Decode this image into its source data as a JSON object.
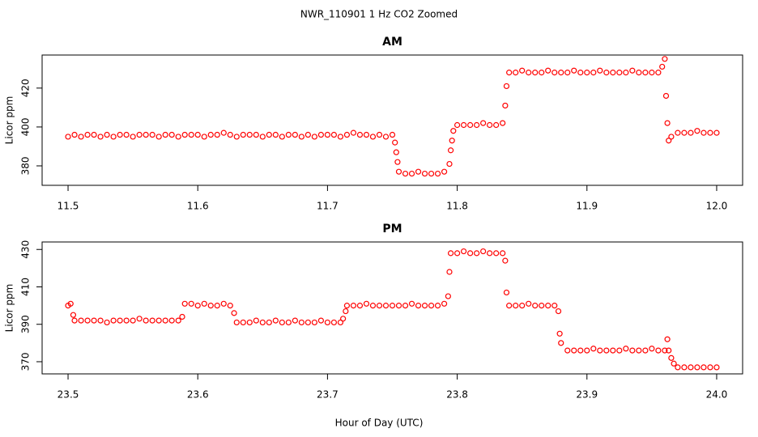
{
  "title": "NWR_110901  1 Hz CO2 Zoomed",
  "xlabel": "Hour of Day (UTC)",
  "chart_data": [
    {
      "type": "scatter",
      "title": "AM",
      "ylabel": "Licor ppm",
      "color": "#ff0000",
      "xlim": [
        11.48,
        12.02
      ],
      "ylim": [
        370,
        437
      ],
      "xticks": [
        {
          "value": 11.5,
          "label": "11.5"
        },
        {
          "value": 11.6,
          "label": "11.6"
        },
        {
          "value": 11.7,
          "label": "11.7"
        },
        {
          "value": 11.8,
          "label": "11.8"
        },
        {
          "value": 11.9,
          "label": "11.9"
        },
        {
          "value": 12.0,
          "label": "12.0"
        }
      ],
      "yticks": [
        380,
        400,
        420
      ],
      "x": [
        11.5,
        11.505,
        11.51,
        11.515,
        11.52,
        11.525,
        11.53,
        11.535,
        11.54,
        11.545,
        11.55,
        11.555,
        11.56,
        11.565,
        11.57,
        11.575,
        11.58,
        11.585,
        11.59,
        11.595,
        11.6,
        11.605,
        11.61,
        11.615,
        11.62,
        11.625,
        11.63,
        11.635,
        11.64,
        11.645,
        11.65,
        11.655,
        11.66,
        11.665,
        11.67,
        11.675,
        11.68,
        11.685,
        11.69,
        11.695,
        11.7,
        11.705,
        11.71,
        11.715,
        11.72,
        11.725,
        11.73,
        11.735,
        11.74,
        11.745,
        11.75,
        11.752,
        11.753,
        11.754,
        11.755,
        11.76,
        11.765,
        11.77,
        11.775,
        11.78,
        11.785,
        11.79,
        11.794,
        11.795,
        11.796,
        11.797,
        11.8,
        11.805,
        11.81,
        11.815,
        11.82,
        11.825,
        11.83,
        11.835,
        11.837,
        11.838,
        11.84,
        11.845,
        11.85,
        11.855,
        11.86,
        11.865,
        11.87,
        11.875,
        11.88,
        11.885,
        11.89,
        11.895,
        11.9,
        11.905,
        11.91,
        11.915,
        11.92,
        11.925,
        11.93,
        11.935,
        11.94,
        11.945,
        11.95,
        11.955,
        11.958,
        11.96,
        11.961,
        11.962,
        11.963,
        11.965,
        11.97,
        11.975,
        11.98,
        11.985,
        11.99,
        11.995,
        12.0
      ],
      "values": [
        395,
        396,
        395,
        396,
        396,
        395,
        396,
        395,
        396,
        396,
        395,
        396,
        396,
        396,
        395,
        396,
        396,
        395,
        396,
        396,
        396,
        395,
        396,
        396,
        397,
        396,
        395,
        396,
        396,
        396,
        395,
        396,
        396,
        395,
        396,
        396,
        395,
        396,
        395,
        396,
        396,
        396,
        395,
        396,
        397,
        396,
        396,
        395,
        396,
        395,
        396,
        392,
        387,
        382,
        377,
        376,
        376,
        377,
        376,
        376,
        376,
        377,
        381,
        388,
        393,
        398,
        401,
        401,
        401,
        401,
        402,
        401,
        401,
        402,
        411,
        421,
        428,
        428,
        429,
        428,
        428,
        428,
        429,
        428,
        428,
        428,
        429,
        428,
        428,
        428,
        429,
        428,
        428,
        428,
        428,
        429,
        428,
        428,
        428,
        428,
        431,
        435,
        416,
        402,
        393,
        395,
        397,
        397,
        397,
        398,
        397,
        397,
        397
      ]
    },
    {
      "type": "scatter",
      "title": "PM",
      "ylabel": "Licor ppm",
      "color": "#ff0000",
      "xlim": [
        23.48,
        24.02
      ],
      "ylim": [
        363.5,
        434
      ],
      "xticks": [
        {
          "value": 23.5,
          "label": "23.5"
        },
        {
          "value": 23.6,
          "label": "23.6"
        },
        {
          "value": 23.7,
          "label": "23.7"
        },
        {
          "value": 23.8,
          "label": "23.8"
        },
        {
          "value": 23.9,
          "label": "23.9"
        },
        {
          "value": 24.0,
          "label": "24.0"
        }
      ],
      "yticks": [
        370,
        390,
        410,
        430
      ],
      "x": [
        23.5,
        23.502,
        23.504,
        23.505,
        23.51,
        23.515,
        23.52,
        23.525,
        23.53,
        23.535,
        23.54,
        23.545,
        23.55,
        23.555,
        23.56,
        23.565,
        23.57,
        23.575,
        23.58,
        23.585,
        23.588,
        23.59,
        23.595,
        23.6,
        23.605,
        23.61,
        23.615,
        23.62,
        23.625,
        23.628,
        23.63,
        23.635,
        23.64,
        23.645,
        23.65,
        23.655,
        23.66,
        23.665,
        23.67,
        23.675,
        23.68,
        23.685,
        23.69,
        23.695,
        23.7,
        23.705,
        23.71,
        23.712,
        23.714,
        23.715,
        23.72,
        23.725,
        23.73,
        23.735,
        23.74,
        23.745,
        23.75,
        23.755,
        23.76,
        23.765,
        23.77,
        23.775,
        23.78,
        23.785,
        23.79,
        23.793,
        23.794,
        23.795,
        23.8,
        23.805,
        23.81,
        23.815,
        23.82,
        23.825,
        23.83,
        23.835,
        23.837,
        23.838,
        23.84,
        23.845,
        23.85,
        23.855,
        23.86,
        23.865,
        23.87,
        23.875,
        23.878,
        23.879,
        23.88,
        23.885,
        23.89,
        23.895,
        23.9,
        23.905,
        23.91,
        23.915,
        23.92,
        23.925,
        23.93,
        23.935,
        23.94,
        23.945,
        23.95,
        23.955,
        23.96,
        23.962,
        23.963,
        23.965,
        23.967,
        23.97,
        23.975,
        23.98,
        23.985,
        23.99,
        23.995,
        24.0
      ],
      "values": [
        400,
        401,
        395,
        392,
        392,
        392,
        392,
        392,
        391,
        392,
        392,
        392,
        392,
        393,
        392,
        392,
        392,
        392,
        392,
        392,
        394,
        401,
        401,
        400,
        401,
        400,
        400,
        401,
        400,
        396,
        391,
        391,
        391,
        392,
        391,
        391,
        392,
        391,
        391,
        392,
        391,
        391,
        391,
        392,
        391,
        391,
        391,
        393,
        397,
        400,
        400,
        400,
        401,
        400,
        400,
        400,
        400,
        400,
        400,
        401,
        400,
        400,
        400,
        400,
        401,
        405,
        418,
        428,
        428,
        429,
        428,
        428,
        429,
        428,
        428,
        428,
        424,
        407,
        400,
        400,
        400,
        401,
        400,
        400,
        400,
        400,
        397,
        385,
        380,
        376,
        376,
        376,
        376,
        377,
        376,
        376,
        376,
        376,
        377,
        376,
        376,
        376,
        377,
        376,
        376,
        382,
        376,
        372,
        369,
        367,
        367,
        367,
        367,
        367,
        367,
        367
      ]
    }
  ]
}
